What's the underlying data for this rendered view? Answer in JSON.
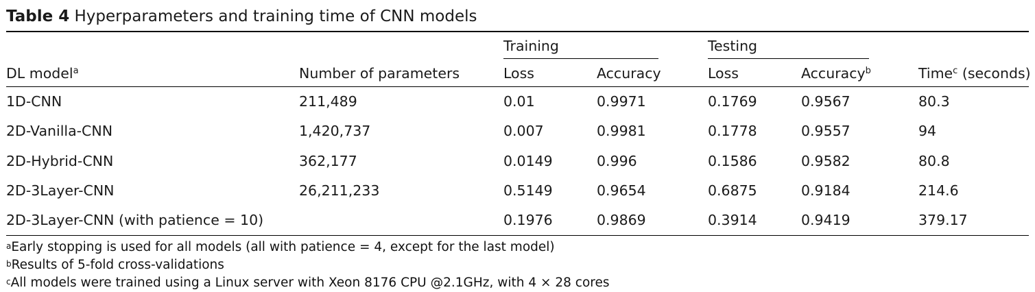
{
  "caption": {
    "label": "Table 4",
    "title": "Hyperparameters and training time of CNN models"
  },
  "header": {
    "group_training": "Training",
    "group_testing": "Testing",
    "col_model": "DL model",
    "col_model_sup": "a",
    "col_params": "Number of parameters",
    "col_train_loss": "Loss",
    "col_train_acc": "Accuracy",
    "col_test_loss": "Loss",
    "col_test_acc": "Accuracy",
    "col_test_acc_sup": "b",
    "col_time_prefix": "Time",
    "col_time_sup": "c",
    "col_time_suffix": " (seconds)"
  },
  "rows": [
    {
      "model": "1D-CNN",
      "params": "211,489",
      "train_loss": "0.01",
      "train_acc": "0.9971",
      "test_loss": "0.1769",
      "test_acc": "0.9567",
      "time": "80.3"
    },
    {
      "model": "2D-Vanilla-CNN",
      "params": "1,420,737",
      "train_loss": "0.007",
      "train_acc": "0.9981",
      "test_loss": "0.1778",
      "test_acc": "0.9557",
      "time": "94"
    },
    {
      "model": "2D-Hybrid-CNN",
      "params": "362,177",
      "train_loss": "0.0149",
      "train_acc": "0.996",
      "test_loss": "0.1586",
      "test_acc": "0.9582",
      "time": "80.8"
    },
    {
      "model": "2D-3Layer-CNN",
      "params": "26,211,233",
      "train_loss": "0.5149",
      "train_acc": "0.9654",
      "test_loss": "0.6875",
      "test_acc": "0.9184",
      "time": "214.6"
    },
    {
      "model": "2D-3Layer-CNN (with patience = 10)",
      "params": "",
      "train_loss": "0.1976",
      "train_acc": "0.9869",
      "test_loss": "0.3914",
      "test_acc": "0.9419",
      "time": "379.17"
    }
  ],
  "footnotes": [
    {
      "mark": "a",
      "text": "Early stopping is used for all models (all with patience = 4, except for the last model)"
    },
    {
      "mark": "b",
      "text": "Results of 5-fold cross-validations"
    },
    {
      "mark": "c",
      "text": "All models were trained using a Linux server with Xeon 8176 CPU @2.1GHz, with 4 × 28 cores"
    }
  ]
}
